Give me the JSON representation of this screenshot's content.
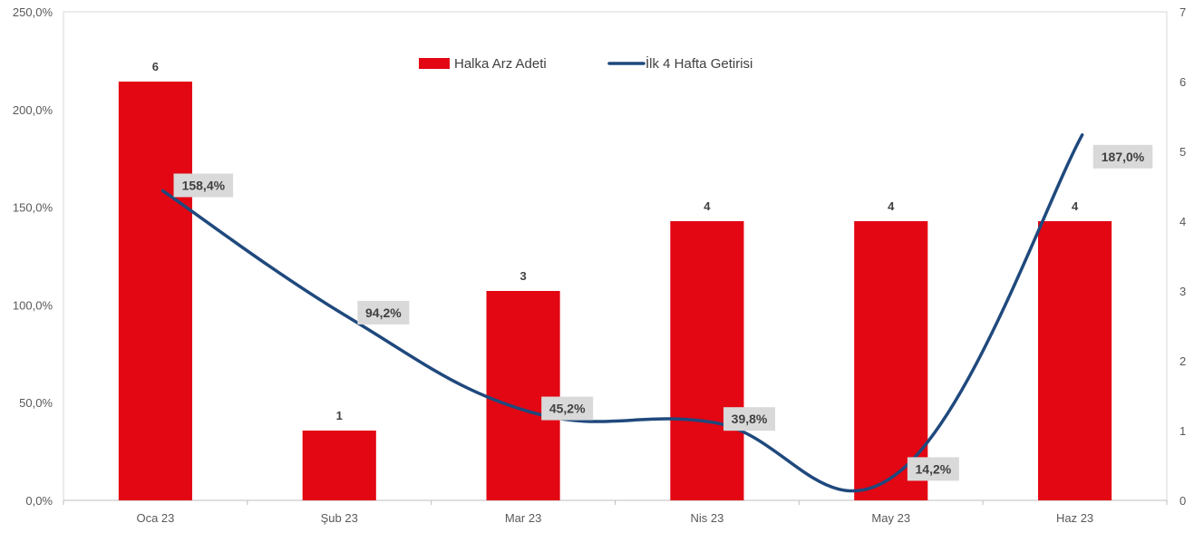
{
  "chart_data": {
    "type": "bar",
    "categories": [
      "Oca 23",
      "Şub 23",
      "Mar 23",
      "Nis 23",
      "May 23",
      "Haz 23"
    ],
    "series": [
      {
        "name": "Halka Arz Adeti",
        "type": "bar",
        "axis": "right",
        "values": [
          6,
          1,
          3,
          4,
          4,
          4
        ],
        "labels": [
          "6",
          "1",
          "3",
          "4",
          "4",
          "4"
        ],
        "color": "#e30613"
      },
      {
        "name": "İlk 4 Hafta Getirisi",
        "type": "line",
        "axis": "left",
        "values": [
          158.4,
          94.2,
          45.2,
          39.8,
          14.2,
          187.0
        ],
        "labels": [
          "158,4%",
          "94,2%",
          "45,2%",
          "39,8%",
          "14,2%",
          "187,0%"
        ],
        "color": "#1f497d"
      }
    ],
    "y_left": {
      "ylim": [
        0,
        250
      ],
      "ticks": [
        "0,0%",
        "50,0%",
        "100,0%",
        "150,0%",
        "200,0%",
        "250,0%"
      ]
    },
    "y_right": {
      "ylim": [
        0,
        7
      ],
      "ticks": [
        "0",
        "1",
        "2",
        "3",
        "4",
        "5",
        "6",
        "7"
      ]
    },
    "legend": {
      "position": "top-center",
      "items": [
        "Halka Arz Adeti",
        "İlk 4 Hafta Getirisi"
      ]
    },
    "grid": false
  }
}
